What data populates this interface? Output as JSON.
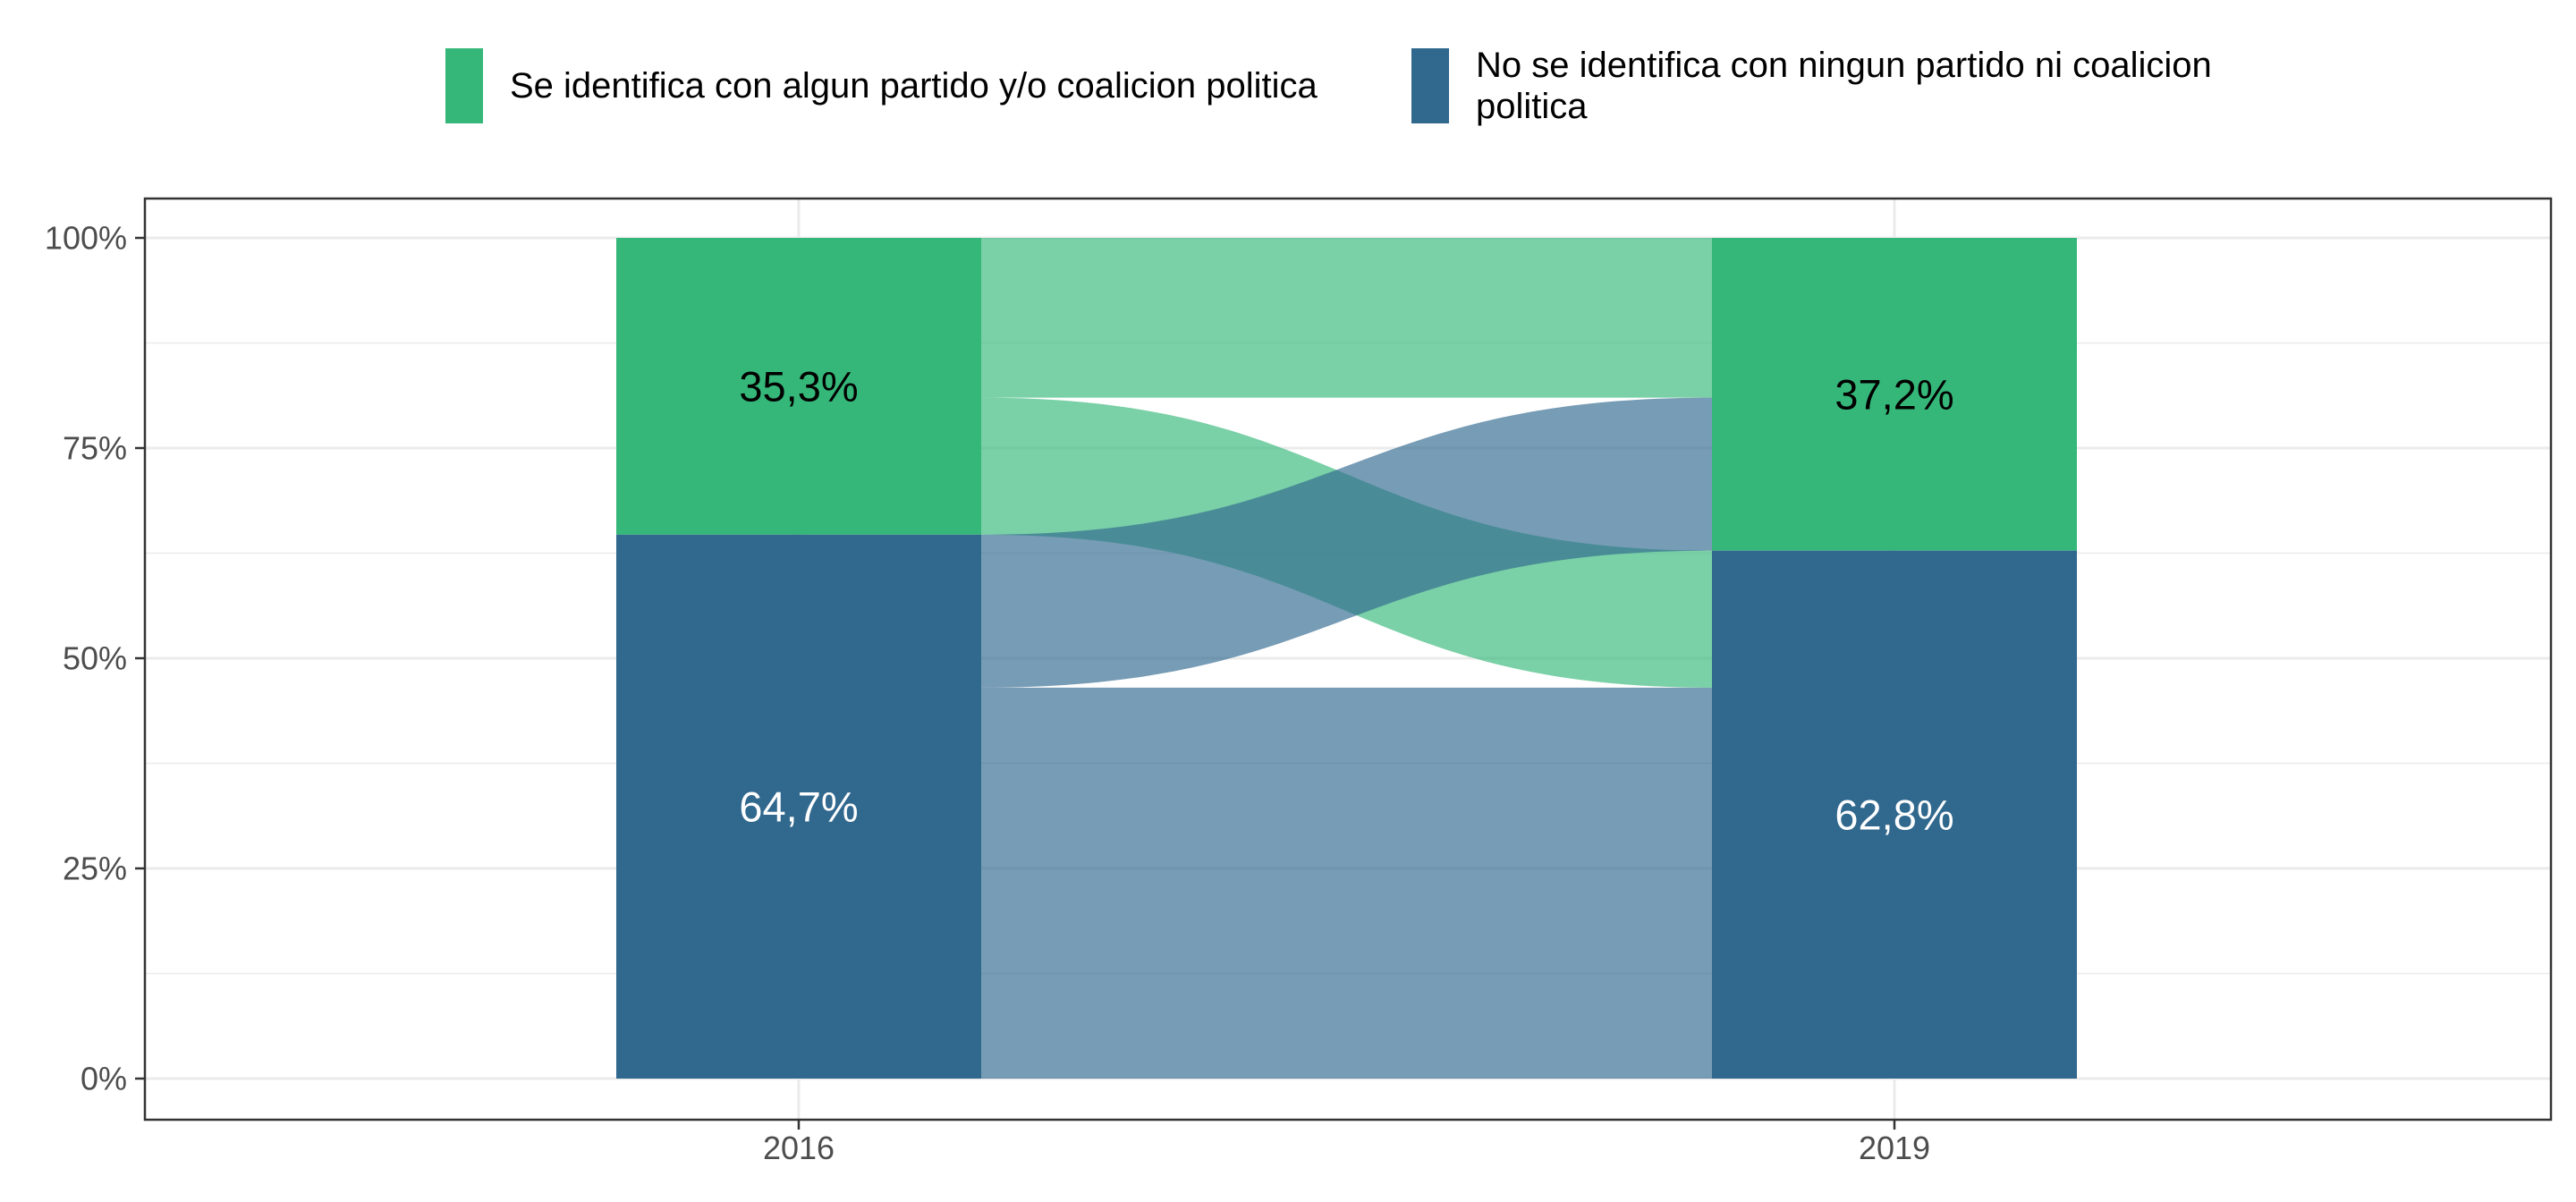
{
  "chart_data": {
    "type": "alluvial",
    "categories": [
      "2016",
      "2019"
    ],
    "series": [
      {
        "name": "Se identifica con algun partido y/o coalicion politica",
        "legend_lines": [
          "Se identifica con algun partido y/o coalicion politica"
        ],
        "color": "#35B779",
        "values": [
          35.3,
          37.2
        ],
        "labels": [
          "35,3%",
          "37,2%"
        ],
        "label_color": "#000000"
      },
      {
        "name": "No se identifica con ningun partido ni coalicion politica",
        "legend_lines": [
          "No se identifica con ningun partido ni coalicion",
          "politica"
        ],
        "color": "#31688E",
        "values": [
          64.7,
          62.8
        ],
        "labels": [
          "64,7%",
          "62,8%"
        ],
        "label_color": "#ffffff"
      }
    ],
    "flows": [
      {
        "from": 0,
        "to": 0,
        "value": 19.0
      },
      {
        "from": 0,
        "to": 1,
        "value": 16.3
      },
      {
        "from": 1,
        "to": 0,
        "value": 18.2
      },
      {
        "from": 1,
        "to": 1,
        "value": 46.5
      }
    ],
    "flow_opacity": 0.66,
    "y_ticks": [
      "0%",
      "25%",
      "50%",
      "75%",
      "100%"
    ],
    "ylim": [
      0,
      100
    ],
    "grid": true,
    "legend_position": "top",
    "title": "",
    "xlabel": "",
    "ylabel": ""
  }
}
